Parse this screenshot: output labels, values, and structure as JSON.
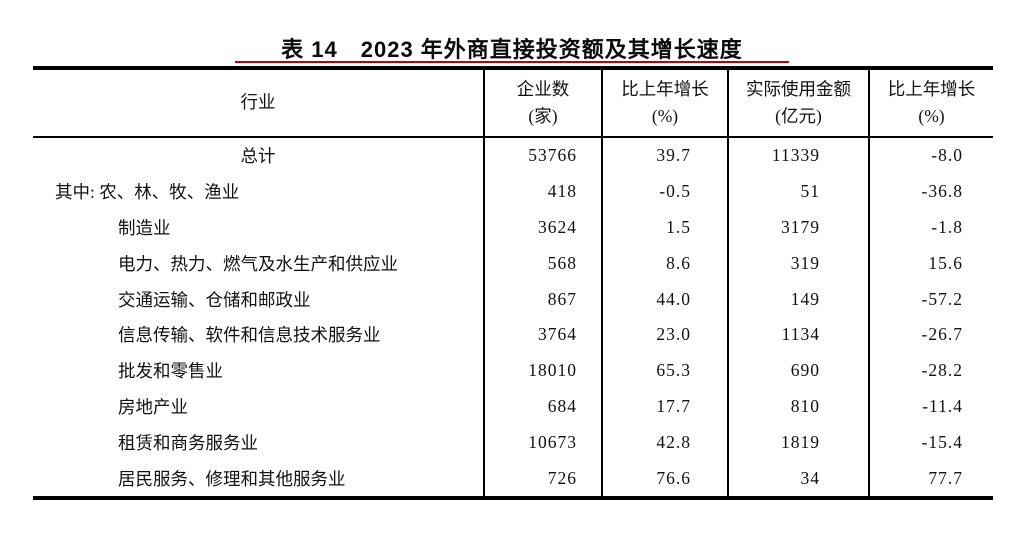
{
  "page": {
    "title": "表 14　2023 年外商直接投资额及其增长速度",
    "accent_color": "#c00000"
  },
  "table": {
    "columns": [
      {
        "label": "行业",
        "unit": ""
      },
      {
        "label": "企业数",
        "unit": "(家)"
      },
      {
        "label": "比上年增长",
        "unit": "(%)"
      },
      {
        "label": "实际使用金额",
        "unit": "(亿元)"
      },
      {
        "label": "比上年增长",
        "unit": "(%)"
      }
    ],
    "rows": [
      {
        "label": "总计",
        "values": [
          "53766",
          "39.7",
          "11339",
          "-8.0"
        ]
      },
      {
        "label": "其中: 农、林、牧、渔业",
        "values": [
          "418",
          "-0.5",
          "51",
          "-36.8"
        ]
      },
      {
        "label": "制造业",
        "values": [
          "3624",
          "1.5",
          "3179",
          "-1.8"
        ]
      },
      {
        "label": "电力、热力、燃气及水生产和供应业",
        "values": [
          "568",
          "8.6",
          "319",
          "15.6"
        ]
      },
      {
        "label": "交通运输、仓储和邮政业",
        "values": [
          "867",
          "44.0",
          "149",
          "-57.2"
        ]
      },
      {
        "label": "信息传输、软件和信息技术服务业",
        "values": [
          "3764",
          "23.0",
          "1134",
          "-26.7"
        ]
      },
      {
        "label": "批发和零售业",
        "values": [
          "18010",
          "65.3",
          "690",
          "-28.2"
        ]
      },
      {
        "label": "房地产业",
        "values": [
          "684",
          "17.7",
          "810",
          "-11.4"
        ]
      },
      {
        "label": "租赁和商务服务业",
        "values": [
          "10673",
          "42.8",
          "1819",
          "-15.4"
        ]
      },
      {
        "label": "居民服务、修理和其他服务业",
        "values": [
          "726",
          "76.6",
          "34",
          "77.7"
        ]
      }
    ]
  },
  "chart_data": {
    "type": "table",
    "title": "表 14　2023 年外商直接投资额及其增长速度",
    "columns": [
      "行业",
      "企业数(家)",
      "比上年增长(%)",
      "实际使用金额(亿元)",
      "比上年增长(%)"
    ],
    "rows": [
      [
        "总计",
        53766,
        39.7,
        11339,
        -8.0
      ],
      [
        "其中: 农、林、牧、渔业",
        418,
        -0.5,
        51,
        -36.8
      ],
      [
        "制造业",
        3624,
        1.5,
        3179,
        -1.8
      ],
      [
        "电力、热力、燃气及水生产和供应业",
        568,
        8.6,
        319,
        15.6
      ],
      [
        "交通运输、仓储和邮政业",
        867,
        44.0,
        149,
        -57.2
      ],
      [
        "信息传输、软件和信息技术服务业",
        3764,
        23.0,
        1134,
        -26.7
      ],
      [
        "批发和零售业",
        18010,
        65.3,
        690,
        -28.2
      ],
      [
        "房地产业",
        684,
        17.7,
        810,
        -11.4
      ],
      [
        "租赁和商务服务业",
        10673,
        42.8,
        1819,
        -15.4
      ],
      [
        "居民服务、修理和其他服务业",
        726,
        76.6,
        34,
        77.7
      ]
    ]
  }
}
